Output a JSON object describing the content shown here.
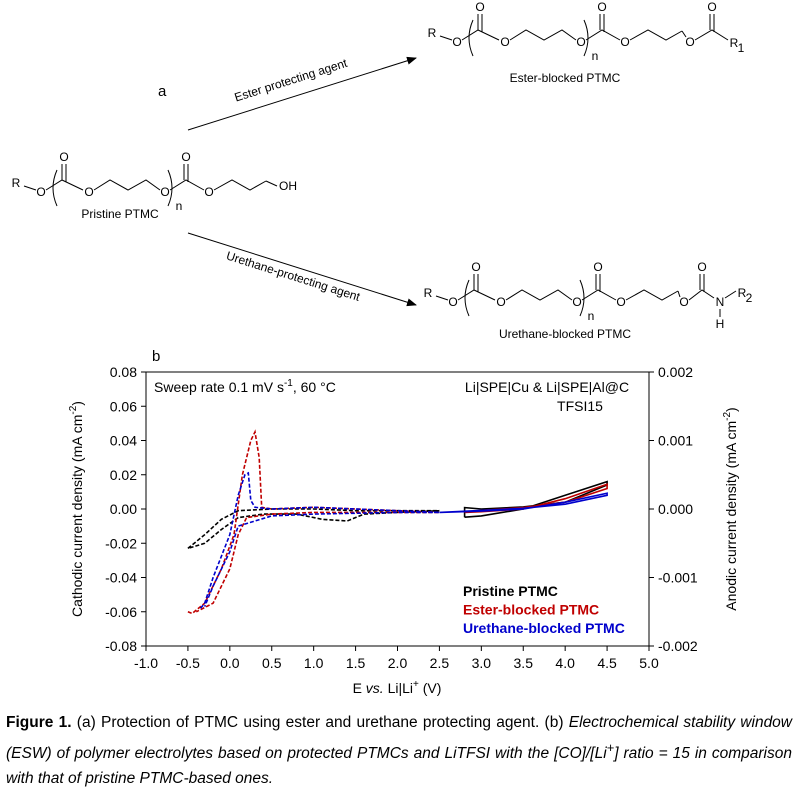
{
  "scheme": {
    "panel_label": "a",
    "molecules": [
      {
        "name": "Pristine PTMC",
        "atoms": [
          "R",
          "O",
          "O",
          "O",
          "O",
          "n",
          "O",
          "O",
          "OH"
        ]
      },
      {
        "name": "Ester-blocked PTMC",
        "atoms": [
          "R",
          "O",
          "O",
          "O",
          "O",
          "n",
          "O",
          "O",
          "O",
          "O",
          "R",
          "1"
        ]
      },
      {
        "name": "Urethane-blocked PTMC",
        "atoms": [
          "R",
          "O",
          "O",
          "O",
          "O",
          "n",
          "O",
          "O",
          "O",
          "O",
          "N",
          "H",
          "R",
          "2"
        ]
      }
    ],
    "arrows": [
      "Ester protecting agent",
      "Urethane-protecting agent"
    ]
  },
  "chart_data": {
    "type": "cv",
    "panel_label": "b",
    "annotation_left": [
      "Sweep rate 0.1 mV s",
      "-1",
      ", 60 °C"
    ],
    "annotation_right": [
      "Li|SPE|Cu & Li|SPE|Al@C",
      "TFSI15"
    ],
    "xlabel": [
      "E",
      "vs.",
      "Li|Li",
      "+",
      "(V)"
    ],
    "ylabel": [
      "Cathodic current density (mA cm",
      "-2",
      ")"
    ],
    "y2label": [
      "Anodic current density (mA cm",
      "-2",
      ")"
    ],
    "xlim": [
      -1.0,
      5.0
    ],
    "xticks": [
      {
        "value": -1,
        "label": "-1.0"
      },
      -0.5,
      {
        "value": 0,
        "label": "0.0"
      },
      0.5,
      {
        "value": 1,
        "label": "1.0"
      },
      1.5,
      {
        "value": 2,
        "label": "2.0"
      },
      2.5,
      {
        "value": 3,
        "label": "3.0"
      },
      3.5,
      {
        "value": 4,
        "label": "4.0"
      },
      4.5,
      {
        "value": 5,
        "label": "5.0"
      }
    ],
    "ylim": [
      -0.08,
      0.08
    ],
    "yticks": [
      0.08,
      0.06,
      0.04,
      0.02,
      {
        "value": 0,
        "label": "0.00"
      },
      -0.02,
      -0.04,
      -0.06,
      -0.08
    ],
    "y2lim": [
      -0.002,
      0.002
    ],
    "y2ticks": [
      0.002,
      0.001,
      {
        "value": 0,
        "label": "0.000"
      },
      -0.001,
      -0.002
    ],
    "series": [
      {
        "name": "Pristine PTMC",
        "color": "#000000",
        "cathodic": {
          "axis": "y",
          "style": "dashed",
          "x": [
            -0.5,
            -0.3,
            -0.1,
            0.1,
            0.5,
            1.0,
            1.5,
            2.0,
            2.5,
            2.0,
            1.6,
            1.4,
            1.1,
            0.8,
            0.4,
            0.1,
            -0.1,
            -0.3,
            -0.5
          ],
          "y": [
            -0.023,
            -0.015,
            -0.006,
            -0.001,
            0,
            0,
            -0.001,
            -0.001,
            -0.001,
            -0.002,
            -0.003,
            -0.007,
            -0.006,
            -0.003,
            -0.003,
            -0.005,
            -0.012,
            -0.02,
            -0.023
          ]
        },
        "anodic": {
          "axis": "y2",
          "style": "solid",
          "x": [
            2.8,
            3.0,
            3.5,
            4.0,
            4.5,
            4.5,
            4.0,
            3.5,
            3.0,
            2.8,
            2.8
          ],
          "y": [
            -0.00012,
            -0.0001,
            0,
            0.0002,
            0.0004,
            0.00035,
            0.0001,
            3e-05,
            0,
            2e-05,
            -0.00012
          ]
        }
      },
      {
        "name": "Ester-blocked PTMC",
        "color": "#c00000",
        "cathodic": {
          "axis": "y",
          "style": "dashed",
          "x": [
            -0.5,
            -0.45,
            -0.3,
            -0.1,
            0.05,
            0.15,
            0.25,
            0.3,
            0.35,
            0.38,
            0.5,
            1.0,
            1.5,
            2.0,
            2.5,
            2.0,
            1.5,
            1.0,
            0.5,
            0.2,
            0.1,
            0.0,
            -0.2,
            -0.4
          ],
          "y": [
            -0.06,
            -0.061,
            -0.055,
            -0.035,
            -0.015,
            0.02,
            0.04,
            0.045,
            0.03,
            0.001,
            0,
            0.001,
            0,
            -0.001,
            -0.002,
            -0.002,
            -0.002,
            -0.002,
            -0.003,
            -0.005,
            -0.015,
            -0.035,
            -0.055,
            -0.06
          ]
        },
        "anodic": {
          "axis": "y2",
          "style": "solid",
          "x": [
            2.8,
            3.0,
            3.5,
            4.0,
            4.5,
            4.5,
            4.0,
            3.5,
            3.0,
            2.8
          ],
          "y": [
            -5e-05,
            -4e-05,
            0,
            0.00015,
            0.00036,
            0.0003,
            0.0001,
            2e-05,
            -2e-05,
            -5e-05
          ]
        }
      },
      {
        "name": "Urethane-blocked PTMC",
        "color": "#0000cc",
        "cathodic": {
          "axis": "y",
          "style": "dashed",
          "x": [
            -0.35,
            -0.3,
            -0.2,
            0.0,
            0.1,
            0.18,
            0.22,
            0.25,
            0.3,
            0.5,
            1.0,
            1.5,
            2.0,
            2.5,
            2.0,
            1.0,
            0.5,
            0.1,
            0.0,
            -0.2,
            -0.3
          ],
          "y": [
            -0.058,
            -0.055,
            -0.04,
            -0.015,
            0.008,
            0.02,
            0.021,
            0.005,
            0.001,
            0,
            0.001,
            0,
            -0.001,
            -0.002,
            -0.002,
            -0.003,
            -0.004,
            -0.01,
            -0.025,
            -0.045,
            -0.057
          ]
        },
        "anodic": {
          "axis": "y2",
          "style": "solid",
          "x": [
            2.5,
            3.0,
            3.5,
            4.0,
            4.5,
            4.5,
            4.0,
            3.5,
            3.0,
            2.5
          ],
          "y": [
            -5e-05,
            -3e-05,
            0,
            0.0001,
            0.00023,
            0.0002,
            7e-05,
            1e-05,
            -2e-05,
            -5e-05
          ]
        }
      }
    ]
  },
  "caption": {
    "label": "Figure 1.",
    "part_a": "(a) Protection of PTMC using ester and urethane protecting agent. (b)",
    "part_b": [
      "Electrochemical stability window (ESW) of polymer electrolytes based on protected PTMCs and LiTFSI with the [CO]/[Li",
      "+",
      "] ratio = 15 in comparison with that of pristine PTMC-based ones."
    ]
  }
}
